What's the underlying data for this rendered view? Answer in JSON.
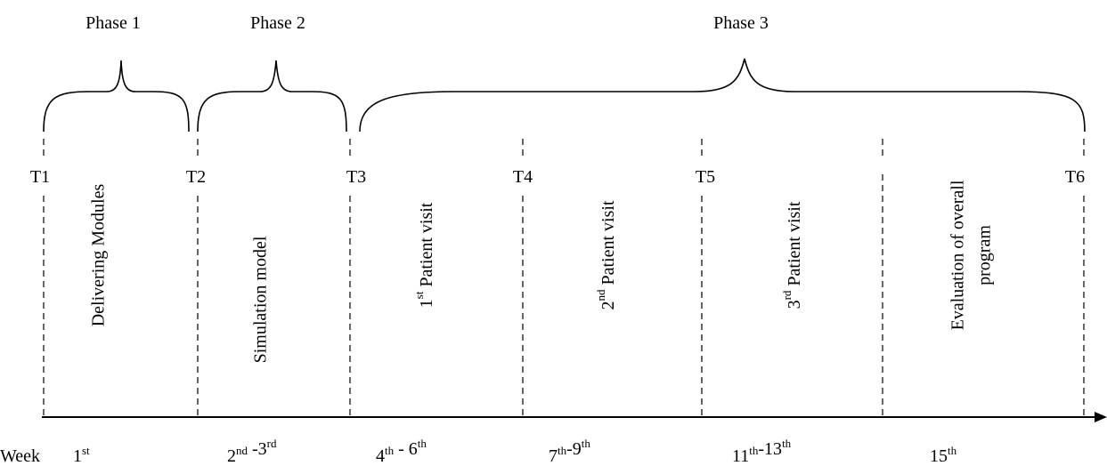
{
  "phases": [
    {
      "label": "Phase 1"
    },
    {
      "label": "Phase 2"
    },
    {
      "label": "Phase 3"
    }
  ],
  "timepoints": [
    "T1",
    "T2",
    "T3",
    "T4",
    "T5",
    "T6"
  ],
  "activities": [
    {
      "lines": [
        {
          "text": "Delivering Modules"
        }
      ]
    },
    {
      "lines": [
        {
          "text": "Simulation model"
        }
      ]
    },
    {
      "lines": [
        {
          "ordinal": "1",
          "sup": "st",
          "text": " Patient visit"
        }
      ]
    },
    {
      "lines": [
        {
          "ordinal": "2",
          "sup": "nd",
          "text": " Patient visit"
        }
      ]
    },
    {
      "lines": [
        {
          "ordinal": "3",
          "sup": "rd",
          "text": " Patient visit"
        }
      ]
    },
    {
      "lines": [
        {
          "text": "Evaluation of overall"
        },
        {
          "text": "program"
        }
      ]
    }
  ],
  "week": {
    "label": "Week",
    "values": [
      [
        {
          "n": "1",
          "s": "st"
        }
      ],
      [
        {
          "n": "2",
          "s": "nd"
        },
        {
          "n": " -3",
          "s": "rd"
        }
      ],
      [
        {
          "n": "4",
          "s": "th"
        },
        {
          "n": " - 6",
          "s": "th"
        }
      ],
      [
        {
          "n": "7",
          "s": "th"
        },
        {
          "n": "-9",
          "s": "th"
        }
      ],
      [
        {
          "n": "11",
          "s": "th"
        },
        {
          "n": "-13",
          "s": "th"
        }
      ],
      [
        {
          "n": "15",
          "s": "th"
        }
      ]
    ]
  }
}
